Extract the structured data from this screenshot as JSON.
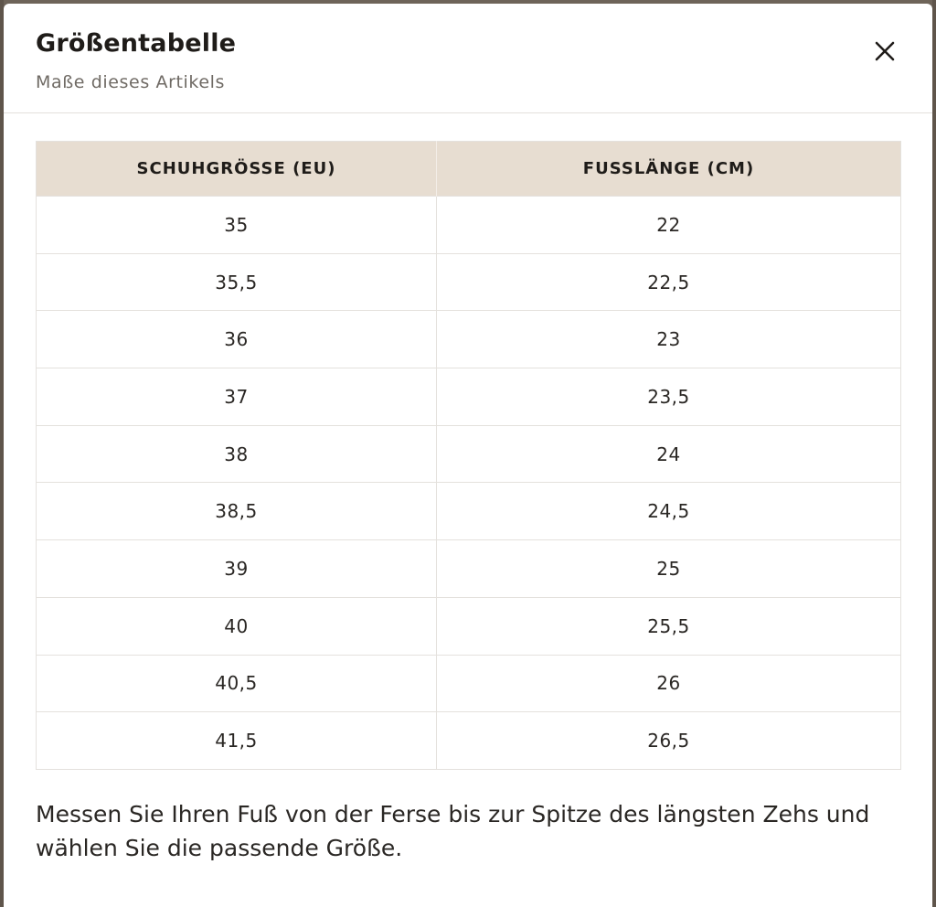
{
  "modal": {
    "title": "Größentabelle",
    "subtitle": "Maße dieses Artikels",
    "close_icon": "close-icon"
  },
  "table": {
    "headers": [
      "SCHUHGRÖSSE (EU)",
      "FUSSLÄNGE (CM)"
    ],
    "rows": [
      [
        "35",
        "22"
      ],
      [
        "35,5",
        "22,5"
      ],
      [
        "36",
        "23"
      ],
      [
        "37",
        "23,5"
      ],
      [
        "38",
        "24"
      ],
      [
        "38,5",
        "24,5"
      ],
      [
        "39",
        "25"
      ],
      [
        "40",
        "25,5"
      ],
      [
        "40,5",
        "26"
      ],
      [
        "41,5",
        "26,5"
      ]
    ]
  },
  "footer": {
    "note": "Messen Sie Ihren Fuß von der Ferse bis zur Spitze des längsten Zehs und wählen Sie die passende Größe."
  },
  "colors": {
    "header_bg": "#e7ddd1",
    "text": "#1f1c19",
    "border": "#e4e1dd"
  }
}
